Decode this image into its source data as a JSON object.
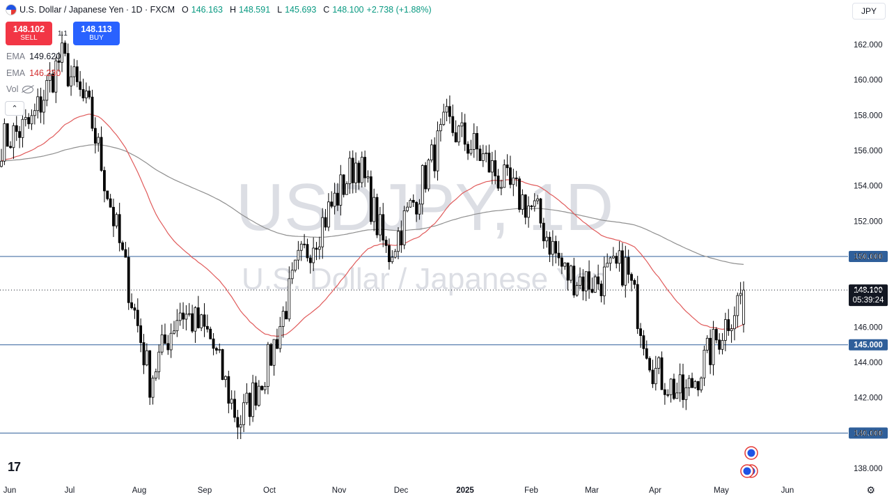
{
  "header": {
    "symbol_title": "U.S. Dollar / Japanese Yen · 1D · FXCM",
    "o_label": "O",
    "o_value": "146.163",
    "h_label": "H",
    "h_value": "148.591",
    "l_label": "L",
    "l_value": "145.693",
    "c_label": "C",
    "c_value": "148.100",
    "change": "+2.738 (+1.88%)"
  },
  "trade": {
    "sell_price": "148.102",
    "sell_label": "SELL",
    "spread": "1.1",
    "buy_price": "148.113",
    "buy_label": "BUY"
  },
  "indicators": {
    "ema1_label": "EMA",
    "ema1_value": "149.620",
    "ema2_label": "EMA",
    "ema2_value": "146.230",
    "vol_label": "Vol"
  },
  "currency_button": "JPY",
  "watermark": {
    "big": "USDJPY, 1D",
    "small": "U.S. Dollar / Japanese Yen"
  },
  "colors": {
    "up": "#089981",
    "down": "#000000",
    "ema_fast": "#e05a5a",
    "ema_slow": "#8f8f8f",
    "hline": "#2f5f9a",
    "label_bg": "#2f5f9a",
    "price_bg": "#131722"
  },
  "chart_data": {
    "type": "candlestick",
    "title": "U.S. Dollar / Japanese Yen · 1D · FXCM",
    "x_ticks": [
      "Jun",
      "Jul",
      "Aug",
      "Sep",
      "Oct",
      "Nov",
      "Dec",
      "2025",
      "Feb",
      "Mar",
      "Apr",
      "May",
      "Jun"
    ],
    "y_ticks": [
      "162.000",
      "160.000",
      "158.000",
      "156.000",
      "154.000",
      "152.000",
      "150.000",
      "148.000",
      "146.000",
      "144.000",
      "142.000",
      "140.000",
      "138.000"
    ],
    "y_range": [
      137.4,
      164.7
    ],
    "horizontal_levels": [
      150.0,
      145.0,
      140.0
    ],
    "last_price": "148.100",
    "countdown": "05:39:24",
    "monthly_path": [
      {
        "date": "Jun",
        "close": 156.5
      },
      {
        "date": "mid-Jun",
        "close": 157.5
      },
      {
        "date": "Jul",
        "close": 161.3
      },
      {
        "date": "mid-Jul",
        "close": 158.0
      },
      {
        "date": "Aug",
        "close": 150.5
      },
      {
        "date": "early-Aug",
        "close": 143.0
      },
      {
        "date": "mid-Aug",
        "close": 147.0
      },
      {
        "date": "Sep",
        "close": 145.5
      },
      {
        "date": "mid-Sep",
        "close": 140.5
      },
      {
        "date": "Oct",
        "close": 144.0
      },
      {
        "date": "mid-Oct",
        "close": 149.5
      },
      {
        "date": "Nov",
        "close": 152.5
      },
      {
        "date": "mid-Nov",
        "close": 155.5
      },
      {
        "date": "Dec",
        "close": 150.0
      },
      {
        "date": "mid-Dec",
        "close": 153.5
      },
      {
        "date": "2025",
        "close": 157.5
      },
      {
        "date": "mid-Jan",
        "close": 156.0
      },
      {
        "date": "Feb",
        "close": 154.0
      },
      {
        "date": "mid-Feb",
        "close": 152.5
      },
      {
        "date": "Mar",
        "close": 149.0
      },
      {
        "date": "mid-Mar",
        "close": 148.5
      },
      {
        "date": "Apr",
        "close": 149.5
      },
      {
        "date": "mid-Apr",
        "close": 143.5
      },
      {
        "date": "late-Apr",
        "close": 142.0
      },
      {
        "date": "May",
        "close": 145.0
      },
      {
        "date": "mid-May",
        "close": 148.1
      }
    ],
    "series": [
      {
        "name": "EMA",
        "value": "149.620"
      },
      {
        "name": "EMA",
        "value": "146.230"
      }
    ]
  }
}
